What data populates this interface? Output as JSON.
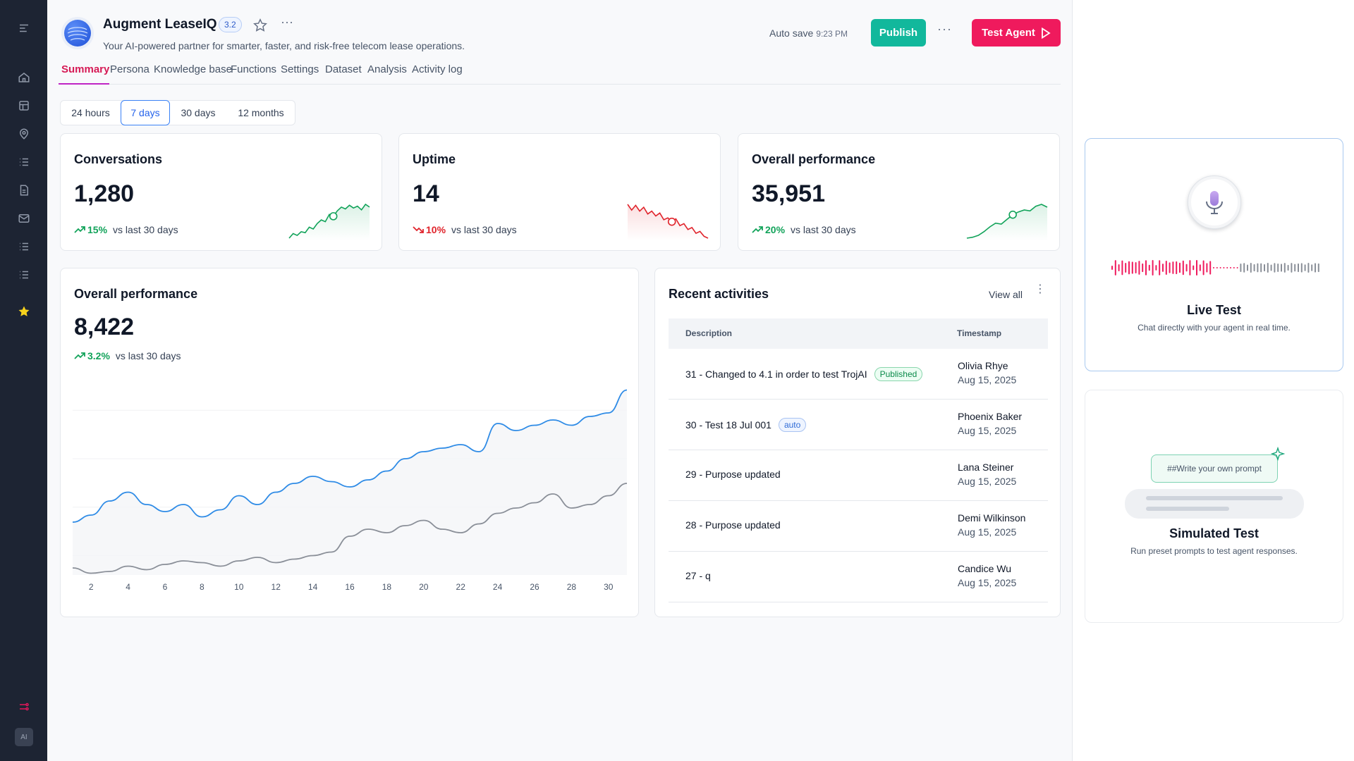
{
  "sidebar": {
    "icons": [
      "menu-icon",
      "home-icon",
      "layout-icon",
      "location-pin-icon",
      "checklist-icon",
      "document-icon",
      "mail-icon",
      "list-icon",
      "list-alt-icon",
      "star-icon",
      "routing-icon"
    ],
    "avatar_text": "AI"
  },
  "header": {
    "title": "Augment LeaseIQ",
    "version": "3.2",
    "subtitle": "Your AI-powered partner for smarter, faster, and risk-free telecom lease operations.",
    "autosave_label": "Auto save",
    "autosave_time": "9:23 PM",
    "publish_label": "Publish",
    "test_agent_label": "Test Agent"
  },
  "tabs": [
    "Summary",
    "Persona",
    "Knowledge base",
    "Functions",
    "Settings",
    "Dataset",
    "Analysis",
    "Activity log"
  ],
  "active_tab": "Summary",
  "ranges": [
    "24 hours",
    "7 days",
    "30 days",
    "12 months"
  ],
  "active_range": "7 days",
  "kpis": [
    {
      "title": "Conversations",
      "value": "1,280",
      "delta": "15%",
      "trend": "up",
      "vs": "vs last 30 days"
    },
    {
      "title": "Uptime",
      "value": "14",
      "delta": "10%",
      "trend": "down",
      "vs": "vs last 30 days"
    },
    {
      "title": "Overall performance",
      "value": "35,951",
      "delta": "20%",
      "trend": "up",
      "vs": "vs last 30 days"
    }
  ],
  "performance": {
    "title": "Overall performance",
    "value": "8,422",
    "delta": "3.2%",
    "vs": "vs last 30 days"
  },
  "chart_data": {
    "type": "line",
    "title": "Overall performance",
    "x": [
      1,
      2,
      3,
      4,
      5,
      6,
      7,
      8,
      9,
      10,
      11,
      12,
      13,
      14,
      15,
      16,
      17,
      18,
      19,
      20,
      21,
      22,
      23,
      24,
      25,
      26,
      27,
      28,
      29,
      30,
      31
    ],
    "tick_labels": [
      "2",
      "4",
      "6",
      "8",
      "10",
      "12",
      "14",
      "16",
      "18",
      "20",
      "22",
      "24",
      "26",
      "28",
      "30"
    ],
    "series": [
      {
        "color": "#2e8be6",
        "values": [
          30,
          34,
          42,
          47,
          40,
          36,
          40,
          33,
          37,
          45,
          40,
          47,
          52,
          56,
          53,
          50,
          54,
          59,
          66,
          70,
          72,
          74,
          70,
          86,
          82,
          85,
          88,
          85,
          90,
          92,
          105
        ]
      },
      {
        "color": "#8a8f98",
        "values": [
          4,
          1,
          2,
          5,
          3,
          6,
          8,
          7,
          5,
          8,
          10,
          7,
          9,
          11,
          13,
          22,
          26,
          24,
          28,
          31,
          26,
          24,
          29,
          35,
          38,
          41,
          46,
          38,
          40,
          45,
          52
        ]
      }
    ],
    "grid": true
  },
  "kpi_sparks": [
    {
      "color": "#12a35a",
      "values": [
        4,
        9,
        7,
        11,
        10,
        16,
        14,
        20,
        24,
        22,
        30,
        28,
        34,
        38,
        36,
        40,
        37,
        39,
        35,
        41,
        38
      ]
    },
    {
      "color": "#e0242c",
      "values": [
        40,
        34,
        39,
        33,
        37,
        30,
        33,
        28,
        31,
        24,
        26,
        22,
        25,
        18,
        20,
        14,
        16,
        10,
        12,
        7,
        5
      ]
    },
    {
      "color": "#12a35a",
      "values": [
        2,
        3,
        5,
        9,
        14,
        18,
        17,
        22,
        27,
        30,
        32,
        31,
        36,
        38,
        35
      ]
    }
  ],
  "activities": {
    "title": "Recent activities",
    "view_all": "View all",
    "col_description": "Description",
    "col_timestamp": "Timestamp",
    "rows": [
      {
        "desc": "31 - Changed to 4.1 in order to test TrojAI",
        "badge": "Published",
        "badge_type": "green",
        "who": "Olivia Rhye",
        "when": "Aug 15, 2025"
      },
      {
        "desc": "30 - Test 18 Jul 001",
        "badge": "auto",
        "badge_type": "blue",
        "who": "Phoenix Baker",
        "when": "Aug 15, 2025"
      },
      {
        "desc": "29 - Purpose updated",
        "badge": "",
        "badge_type": "",
        "who": "Lana Steiner",
        "when": "Aug 15, 2025"
      },
      {
        "desc": "28 - Purpose updated",
        "badge": "",
        "badge_type": "",
        "who": "Demi Wilkinson",
        "when": "Aug 15, 2025"
      },
      {
        "desc": "27 - q",
        "badge": "",
        "badge_type": "",
        "who": "Candice Wu",
        "when": "Aug 15, 2025"
      }
    ]
  },
  "live_test": {
    "title": "Live Test",
    "subtitle": "Chat directly with your agent in real time."
  },
  "simulated_test": {
    "title": "Simulated Test",
    "subtitle": "Run preset prompts to test agent responses.",
    "prompt_placeholder": "##Write your own prompt"
  },
  "colors": {
    "accent": "#ef1a5d",
    "publish": "#12b89c",
    "sidebar": "#1d2433"
  }
}
